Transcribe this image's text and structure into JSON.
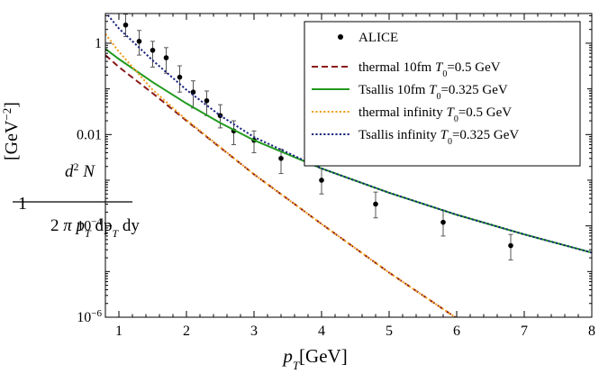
{
  "chart_data": {
    "type": "scatter",
    "xlabel": "p_T[GeV]",
    "ylabel": "1/(2π p_T dp_T dy) d²N [GeV⁻²]",
    "xlim": [
      0.8,
      8.0
    ],
    "ylim_log10": [
      -6,
      0.65
    ],
    "x_scale": "linear",
    "y_scale": "log",
    "x_ticks": [
      1,
      2,
      3,
      4,
      5,
      6,
      7,
      8
    ],
    "y_ticks": [
      {
        "value": 1,
        "label": "1"
      },
      {
        "value": 0.01,
        "label": "0.01"
      },
      {
        "value": 0.0001,
        "label": "10⁻⁴"
      },
      {
        "value": 1e-06,
        "label": "10⁻⁶"
      }
    ],
    "grid": false,
    "legend_position": "top-right",
    "series": [
      {
        "name": "ALICE",
        "kind": "points",
        "color": "#000000",
        "x": [
          1.1,
          1.3,
          1.5,
          1.7,
          1.9,
          2.1,
          2.3,
          2.5,
          2.7,
          3.0,
          3.4,
          4.0,
          4.8,
          5.8,
          6.8
        ],
        "y": [
          2.5,
          1.1,
          0.7,
          0.48,
          0.18,
          0.085,
          0.055,
          0.026,
          0.012,
          0.0075,
          0.003,
          0.001,
          0.0003,
          0.00012,
          3.7e-05
        ],
        "err_lo": [
          1.4,
          0.55,
          0.3,
          0.22,
          0.085,
          0.038,
          0.026,
          0.014,
          0.006,
          0.004,
          0.0014,
          0.0005,
          0.00015,
          6e-05,
          1.8e-05
        ],
        "err_hi": [
          4.3,
          1.9,
          1.1,
          0.8,
          0.32,
          0.15,
          0.09,
          0.045,
          0.02,
          0.012,
          0.0048,
          0.0018,
          0.00055,
          0.00022,
          6.5e-05
        ]
      },
      {
        "name": "thermal 10fm T0=0.5 GeV",
        "kind": "line",
        "style": "dashed",
        "color": "#8b1a1a",
        "x": [
          0.8,
          1.0,
          1.5,
          2.0,
          3.0,
          4.0,
          5.0,
          6.0,
          6.2
        ],
        "y": [
          0.55,
          0.3,
          0.08,
          0.02,
          0.00135,
          0.00011,
          9.5e-06,
          9.5e-07,
          6e-07
        ]
      },
      {
        "name": "Tsallis 10fm T0=0.325 GeV",
        "kind": "line",
        "style": "solid",
        "color": "#229a1f",
        "x": [
          0.8,
          1.0,
          1.5,
          2.0,
          2.5,
          3.0,
          4.0,
          5.0,
          6.0,
          7.0,
          8.0
        ],
        "y": [
          0.75,
          0.45,
          0.14,
          0.048,
          0.018,
          0.0075,
          0.0018,
          0.00053,
          0.000175,
          6.5e-05,
          2.6e-05
        ]
      },
      {
        "name": "thermal infinity T0=0.5 GeV",
        "kind": "line",
        "style": "dotted",
        "color": "#f0a020",
        "x": [
          0.8,
          1.0,
          1.5,
          2.0,
          3.0,
          4.0,
          5.0,
          6.0,
          6.2
        ],
        "y": [
          1.6,
          0.65,
          0.095,
          0.021,
          0.00135,
          0.00011,
          9.5e-06,
          9.5e-07,
          6e-07
        ]
      },
      {
        "name": "Tsallis infinity T0=0.325 GeV",
        "kind": "line",
        "style": "dotted",
        "color": "#1a237e",
        "x": [
          0.8,
          1.0,
          1.5,
          2.0,
          2.5,
          3.0,
          4.0,
          5.0,
          6.0,
          7.0,
          8.0
        ],
        "y": [
          4.8,
          2.1,
          0.42,
          0.095,
          0.026,
          0.0088,
          0.0018,
          0.00053,
          0.000175,
          6.5e-05,
          2.6e-05
        ]
      }
    ],
    "legend": [
      {
        "prefix": "ALICE",
        "t0": ""
      },
      {
        "prefix": "thermal 10fm ",
        "t0": "=0.5 GeV"
      },
      {
        "prefix": "Tsallis 10fm ",
        "t0": "=0.325 GeV"
      },
      {
        "prefix": "thermal infinity ",
        "t0": "=0.5 GeV"
      },
      {
        "prefix": "Tsallis infinity ",
        "t0": "=0.325 GeV"
      }
    ]
  }
}
